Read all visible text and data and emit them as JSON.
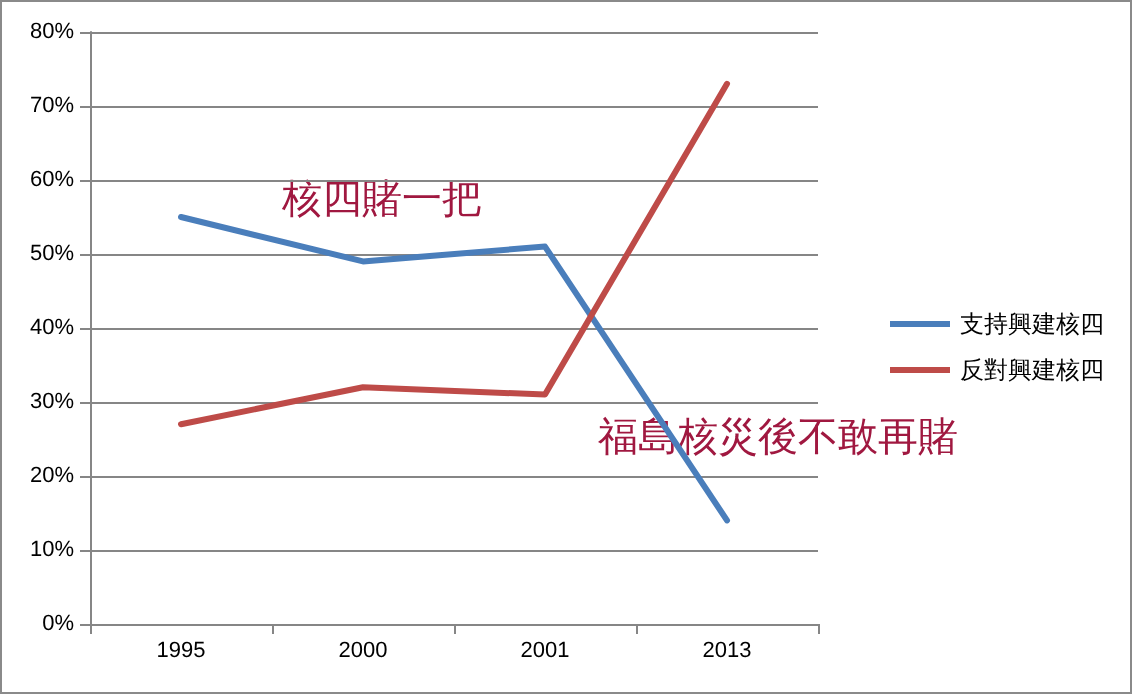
{
  "chart_data": {
    "type": "line",
    "categories": [
      "1995",
      "2000",
      "2001",
      "2013"
    ],
    "series": [
      {
        "name": "支持興建核四",
        "color": "#4a7ebb",
        "values": [
          55,
          49,
          51,
          14
        ]
      },
      {
        "name": "反對興建核四",
        "color": "#be4b48",
        "values": [
          27,
          32,
          31,
          73
        ]
      }
    ],
    "ylim": [
      0,
      80
    ],
    "yticks": [
      {
        "value": 0,
        "label": "0%"
      },
      {
        "value": 10,
        "label": "10%"
      },
      {
        "value": 20,
        "label": "20%"
      },
      {
        "value": 30,
        "label": "30%"
      },
      {
        "value": 40,
        "label": "40%"
      },
      {
        "value": 50,
        "label": "50%"
      },
      {
        "value": 60,
        "label": "60%"
      },
      {
        "value": 70,
        "label": "70%"
      },
      {
        "value": 80,
        "label": "80%"
      }
    ],
    "grid": "y",
    "legend": "right",
    "marker": "none",
    "line_style": "solid",
    "annotations": [
      "核四賭一把",
      "福島核災後不敢再賭"
    ]
  }
}
